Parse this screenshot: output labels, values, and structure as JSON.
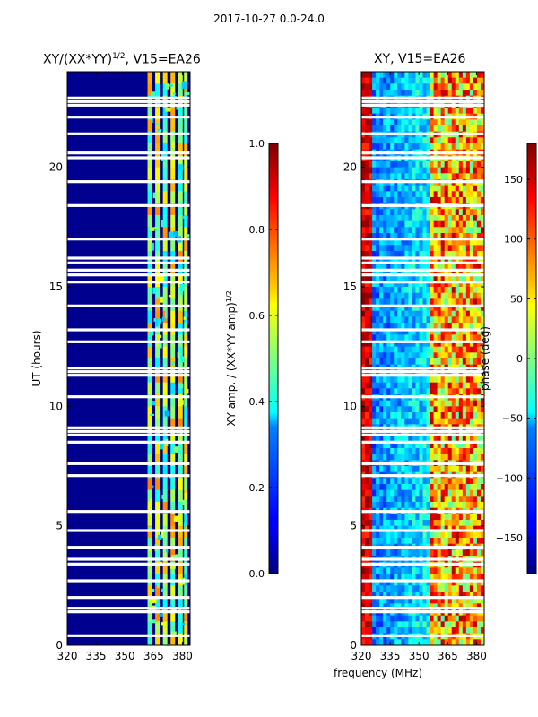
{
  "suptitle": "2017-10-27 0.0-24.0",
  "chart_data": [
    {
      "type": "heatmap",
      "title": "XY/(XX*YY)^1/2, V15=EA26",
      "title_main": "XY/(XX*YY)",
      "title_exp": "1/2",
      "title_rest": ", V15=EA26",
      "xlabel": "",
      "ylabel": "UT (hours)",
      "xlim": [
        320,
        384
      ],
      "ylim": [
        0,
        24
      ],
      "xticks": [
        "320",
        "335",
        "350",
        "365",
        "380"
      ],
      "xtick_values": [
        320,
        335,
        350,
        365,
        380
      ],
      "yticks": [
        "0",
        "5",
        "10",
        "15",
        "20"
      ],
      "ytick_values": [
        0,
        5,
        10,
        15,
        20
      ],
      "colormap": "jet",
      "colorbar": {
        "label": "XY amp. / (XX*YY amp)^1/2",
        "label_main": "XY amp. / (XX*YY amp)",
        "label_exp": "1/2",
        "range": [
          0.0,
          1.0
        ],
        "ticks": [
          "0.0",
          "0.2",
          "0.4",
          "0.6",
          "0.8",
          "1.0"
        ],
        "tick_values": [
          0.0,
          0.2,
          0.4,
          0.6,
          0.8,
          1.0
        ]
      },
      "flagged_hours": [
        0.4,
        1.4,
        1.55,
        2.0,
        2.7,
        3.4,
        3.6,
        4.1,
        4.8,
        5.6,
        7.1,
        7.6,
        8.5,
        8.8,
        8.95,
        9.1,
        10.4,
        11.3,
        11.45,
        11.6,
        12.7,
        13.2,
        14.2,
        15.2,
        15.5,
        15.7,
        16.0,
        16.2,
        17.0,
        18.4,
        19.4,
        20.4,
        20.6,
        21.4,
        22.1,
        22.6,
        22.75,
        22.9
      ],
      "band_frequencies_mhz": [
        363,
        367,
        371,
        375,
        379,
        382
      ]
    },
    {
      "type": "heatmap",
      "title": "XY, V15=EA26",
      "xlabel": "frequency (MHz)",
      "ylabel": "",
      "xlim": [
        320,
        384
      ],
      "ylim": [
        0,
        24
      ],
      "xticks": [
        "320",
        "335",
        "350",
        "365",
        "380"
      ],
      "xtick_values": [
        320,
        335,
        350,
        365,
        380
      ],
      "yticks": [
        "0",
        "5",
        "10",
        "15",
        "20"
      ],
      "ytick_values": [
        0,
        5,
        10,
        15,
        20
      ],
      "colormap": "jet",
      "colorbar": {
        "label": "phase (deg)",
        "range": [
          -180,
          180
        ],
        "ticks": [
          "−150",
          "−100",
          "−50",
          "0",
          "50",
          "100",
          "150"
        ],
        "tick_values": [
          -150,
          -100,
          -50,
          0,
          50,
          100,
          150
        ]
      },
      "flagged_hours": [
        0.4,
        1.4,
        1.55,
        2.0,
        2.7,
        3.4,
        3.6,
        4.1,
        4.8,
        5.6,
        7.1,
        7.6,
        8.5,
        8.8,
        8.95,
        9.1,
        10.4,
        11.3,
        11.45,
        11.6,
        12.7,
        13.2,
        14.2,
        15.2,
        15.5,
        15.7,
        16.0,
        16.2,
        17.0,
        18.4,
        19.4,
        20.4,
        20.6,
        21.4,
        22.1,
        22.6,
        22.75,
        22.9
      ]
    }
  ]
}
